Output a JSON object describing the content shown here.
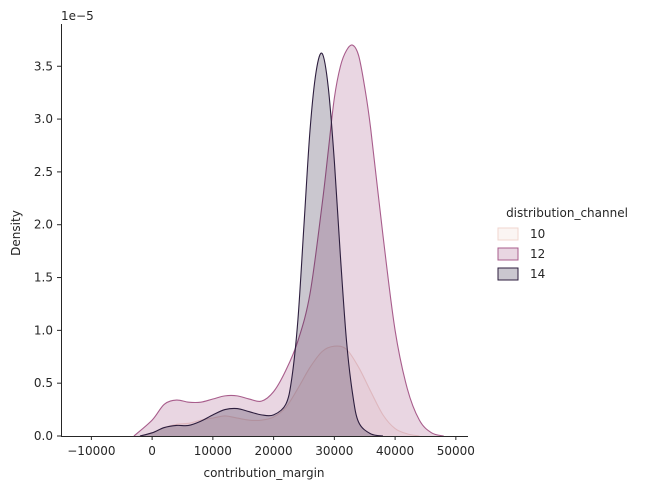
{
  "chart_data": {
    "type": "area",
    "subtype": "kde",
    "xlabel": "contribution_margin",
    "ylabel": "Density",
    "y_offset_label": "1e−5",
    "xlim": [
      -15000,
      52000
    ],
    "ylim": [
      0,
      3.9
    ],
    "xticks": [
      -10000,
      0,
      10000,
      20000,
      30000,
      40000,
      50000
    ],
    "xtick_labels": [
      "−10000",
      "0",
      "10000",
      "20000",
      "30000",
      "40000",
      "50000"
    ],
    "yticks": [
      0,
      0.5,
      1.0,
      1.5,
      2.0,
      2.5,
      3.0,
      3.5
    ],
    "ytick_labels": [
      "0.0",
      "0.5",
      "1.0",
      "1.5",
      "2.0",
      "2.5",
      "3.0",
      "3.5"
    ],
    "grid": false,
    "legend": {
      "title": "distribution_channel",
      "position": "right"
    },
    "series": [
      {
        "name": "10",
        "color": "#f0d6cf",
        "x": [
          -2000,
          0,
          2000,
          4000,
          6000,
          8000,
          10000,
          12000,
          14000,
          16000,
          18000,
          20000,
          22000,
          24000,
          26000,
          28000,
          30000,
          32000,
          34000,
          36000,
          38000,
          40000,
          42000,
          44000
        ],
        "y": [
          0.0,
          0.03,
          0.08,
          0.11,
          0.12,
          0.15,
          0.17,
          0.19,
          0.17,
          0.15,
          0.15,
          0.18,
          0.27,
          0.45,
          0.65,
          0.8,
          0.85,
          0.82,
          0.65,
          0.42,
          0.2,
          0.07,
          0.02,
          0.0
        ]
      },
      {
        "name": "12",
        "color": "#a85d8c",
        "x": [
          -3000,
          0,
          2000,
          4000,
          6000,
          8000,
          10000,
          12000,
          14000,
          16000,
          18000,
          20000,
          22000,
          24000,
          26000,
          28000,
          29000,
          30000,
          31000,
          32000,
          33000,
          34000,
          35000,
          36000,
          38000,
          40000,
          42000,
          44000,
          46000,
          48000
        ],
        "y": [
          0.0,
          0.15,
          0.3,
          0.34,
          0.32,
          0.32,
          0.35,
          0.38,
          0.38,
          0.35,
          0.33,
          0.42,
          0.62,
          0.9,
          1.35,
          2.2,
          2.7,
          3.2,
          3.5,
          3.65,
          3.7,
          3.6,
          3.3,
          2.9,
          1.9,
          1.0,
          0.45,
          0.15,
          0.03,
          0.0
        ]
      },
      {
        "name": "14",
        "color": "#2d1e3e",
        "x": [
          -2000,
          0,
          2000,
          4000,
          6000,
          8000,
          10000,
          12000,
          14000,
          16000,
          18000,
          20000,
          22000,
          23000,
          24000,
          25000,
          26000,
          27000,
          28000,
          29000,
          30000,
          31000,
          32000,
          33000,
          34000,
          36000,
          38000
        ],
        "y": [
          0.0,
          0.03,
          0.08,
          0.1,
          0.1,
          0.14,
          0.2,
          0.25,
          0.26,
          0.23,
          0.2,
          0.2,
          0.3,
          0.55,
          1.1,
          2.0,
          2.9,
          3.45,
          3.62,
          3.3,
          2.6,
          1.7,
          0.9,
          0.4,
          0.13,
          0.02,
          0.0
        ]
      }
    ]
  }
}
